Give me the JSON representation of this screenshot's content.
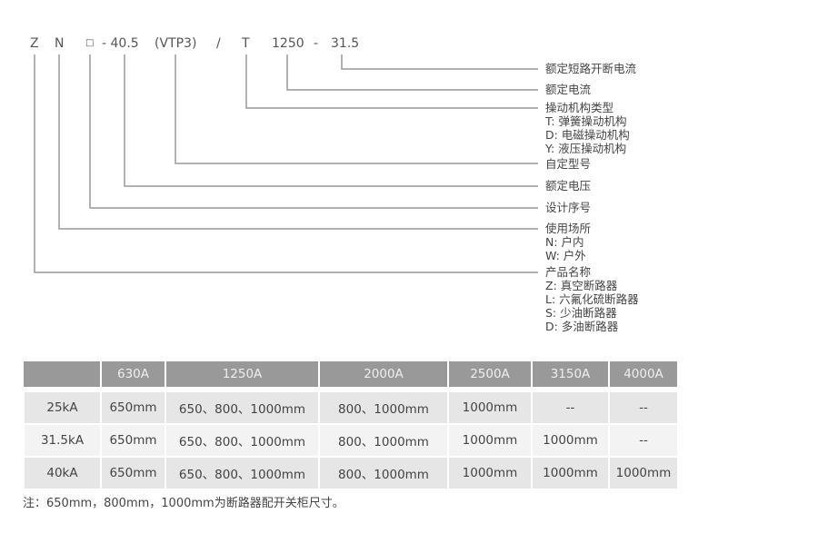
{
  "code": {
    "z": "Z",
    "n": "N",
    "box": "□",
    "voltage": "- 40.5",
    "custom": "(VTP3)",
    "slash": "/",
    "mech": "T",
    "current": "1250",
    "dash": "-",
    "breaking": "31.5"
  },
  "labels": {
    "breaking": "额定短路开断电流",
    "current": "额定电流",
    "mech": [
      "操动机构类型",
      "T:  弹簧操动机构",
      "D:  电磁操动机构",
      "Y:  液压操动机构"
    ],
    "custom": "自定型号",
    "voltage": "额定电压",
    "design": "设计序号",
    "location": [
      "使用场所",
      "N:  户内",
      "W: 户外"
    ],
    "product": [
      "产品名称",
      "Z:  真空断路器",
      "L:  六氟化硫断路器",
      "S:  少油断路器",
      "D:  多油断路器"
    ]
  },
  "table": {
    "headers": [
      "",
      "630A",
      "1250A",
      "2000A",
      "2500A",
      "3150A",
      "4000A"
    ],
    "rows": [
      [
        "25kA",
        "650mm",
        "650、800、1000mm",
        "800、1000mm",
        "1000mm",
        "--",
        "--"
      ],
      [
        "31.5kA",
        "650mm",
        "650、800、1000mm",
        "800、1000mm",
        "1000mm",
        "1000mm",
        "--"
      ],
      [
        "40kA",
        "650mm",
        "650、800、1000mm",
        "800、1000mm",
        "1000mm",
        "1000mm",
        "1000mm"
      ]
    ]
  },
  "note": "注：650mm，800mm，1000mm为断路器配开关柜尺寸。",
  "colors": {
    "header_bg": "#999999",
    "row_dark": "#e6e6e6",
    "row_light": "#f3f3f3",
    "line": "#999999"
  }
}
